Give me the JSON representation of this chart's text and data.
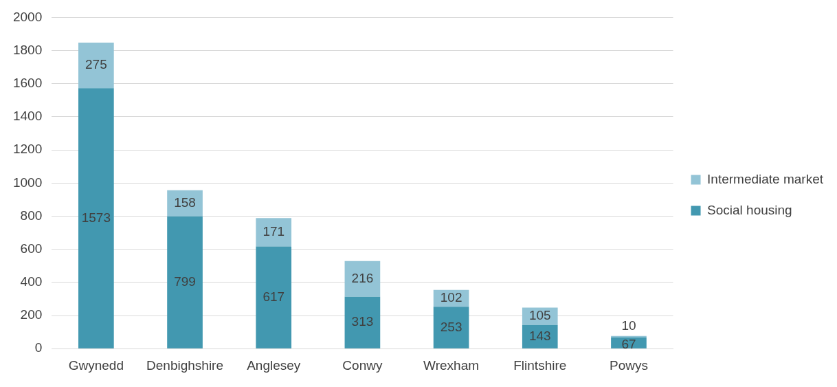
{
  "chart_data": {
    "type": "bar",
    "stacked": true,
    "categories": [
      "Gwynedd",
      "Denbighshire",
      "Anglesey",
      "Conwy",
      "Wrexham",
      "Flintshire",
      "Powys"
    ],
    "series": [
      {
        "name": "Social housing",
        "color": "#4298b0",
        "values": [
          1573,
          799,
          617,
          313,
          253,
          143,
          67
        ]
      },
      {
        "name": "Intermediate market",
        "color": "#93c4d6",
        "values": [
          275,
          158,
          171,
          216,
          102,
          105,
          10
        ]
      }
    ],
    "ylim": [
      0,
      2000
    ],
    "yticks": [
      0,
      200,
      400,
      600,
      800,
      1000,
      1200,
      1400,
      1600,
      1800,
      2000
    ],
    "grid": "y",
    "legend": "right",
    "data_labels": true
  }
}
